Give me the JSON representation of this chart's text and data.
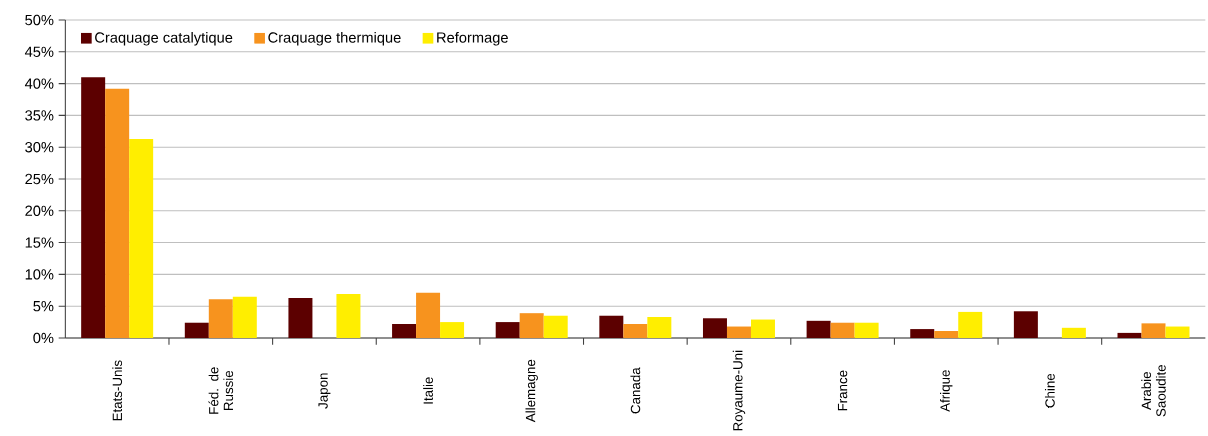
{
  "chart_data": {
    "type": "bar",
    "categories": [
      "Etats-Unis",
      "Féd. de Russie",
      "Japon",
      "Italie",
      "Allemagne",
      "Canada",
      "Royaume-Uni",
      "France",
      "Afrique",
      "Chine",
      "Arabie Saoudite"
    ],
    "series": [
      {
        "name": "Craquage catalytique",
        "color": "#5c0000",
        "values": [
          41,
          2.4,
          6.3,
          2.2,
          2.5,
          3.5,
          3.1,
          2.7,
          1.4,
          4.2,
          0.8
        ]
      },
      {
        "name": "Craquage thermique",
        "color": "#f7931e",
        "values": [
          39.2,
          6.1,
          0,
          7.1,
          3.9,
          2.2,
          1.8,
          2.4,
          1.1,
          0,
          2.3
        ]
      },
      {
        "name": "Reformage",
        "color": "#ffee00",
        "values": [
          31.3,
          6.5,
          6.9,
          2.5,
          3.5,
          3.3,
          2.9,
          2.4,
          4.1,
          1.6,
          1.8
        ]
      }
    ],
    "ylim": [
      0,
      50
    ],
    "yticks": [
      {
        "value": 0,
        "label": "0%"
      },
      {
        "value": 5,
        "label": "5%"
      },
      {
        "value": 10,
        "label": "10%"
      },
      {
        "value": 15,
        "label": "15%"
      },
      {
        "value": 20,
        "label": "20%"
      },
      {
        "value": 25,
        "label": "25%"
      },
      {
        "value": 30,
        "label": "30%"
      },
      {
        "value": 35,
        "label": "35%"
      },
      {
        "value": 40,
        "label": "40%"
      },
      {
        "value": 45,
        "label": "45%"
      },
      {
        "value": 50,
        "label": "50%"
      }
    ],
    "grid": "y",
    "legend": "top left"
  }
}
